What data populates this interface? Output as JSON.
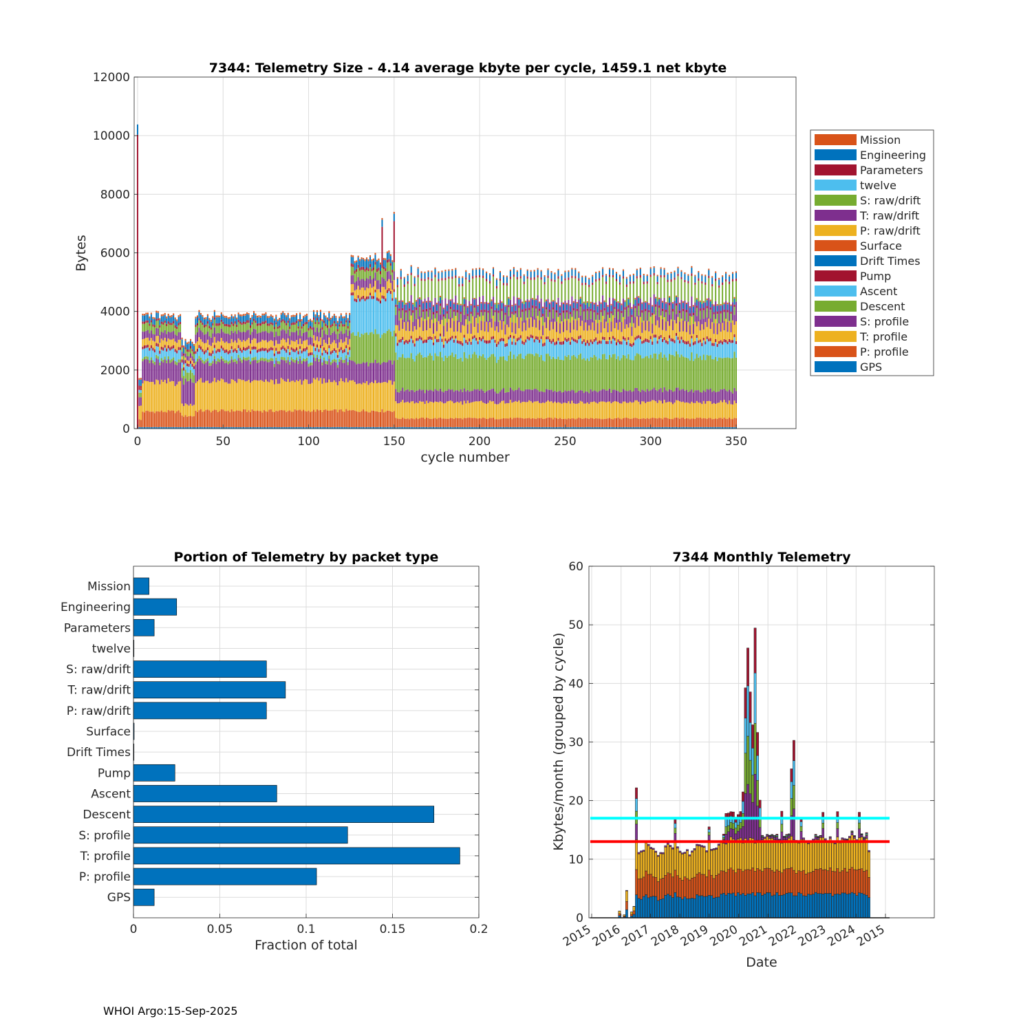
{
  "footer": "WHOI Argo:15-Sep-2025",
  "colors": {
    "Mission": "#D95319",
    "Engineering": "#0072BD",
    "Parameters": "#A2142F",
    "twelve": "#4DBEEE",
    "S: raw/drift": "#77AC30",
    "T: raw/drift": "#7E2F8E",
    "P: raw/drift": "#EDB120",
    "Surface": "#D95319",
    "Drift Times": "#0072BD",
    "Pump": "#A2142F",
    "Ascent": "#4DBEEE",
    "Descent": "#77AC30",
    "S: profile": "#7E2F8E",
    "T: profile": "#EDB120",
    "P: profile": "#D95319",
    "GPS": "#0072BD",
    "bar_blue": "#0072BD",
    "mean_line": "#00FFFF",
    "median_line": "#FF0000"
  },
  "chart_data": [
    {
      "type": "bar",
      "stacked": true,
      "title": "7344: Telemetry Size - 4.14 average kbyte per cycle, 1459.1 net kbyte",
      "xlabel": "cycle number",
      "ylabel": "Bytes",
      "xlim": [
        -2,
        385
      ],
      "ylim": [
        0,
        12000
      ],
      "xticks": [
        0,
        50,
        100,
        150,
        200,
        250,
        300,
        350
      ],
      "yticks": [
        0,
        2000,
        4000,
        6000,
        8000,
        10000,
        12000
      ],
      "grid": true,
      "legend_placement": "outside-right",
      "legend": [
        "Mission",
        "Engineering",
        "Parameters",
        "twelve",
        "S: raw/drift",
        "T: raw/drift",
        "P: raw/drift",
        "Surface",
        "Drift Times",
        "Pump",
        "Ascent",
        "Descent",
        "S: profile",
        "T: profile",
        "P: profile",
        "GPS"
      ],
      "stack_order": [
        "GPS",
        "P: profile",
        "T: profile",
        "S: profile",
        "Descent",
        "Ascent",
        "Pump",
        "Drift Times",
        "Surface",
        "P: raw/drift",
        "T: raw/drift",
        "S: raw/drift",
        "twelve",
        "Parameters",
        "Engineering",
        "Mission"
      ],
      "segments": [
        {
          "cycles": [
            0,
            0
          ],
          "values": {
            "GPS": 0,
            "P: profile": 0,
            "T: profile": 0,
            "S: profile": 0,
            "Descent": 0,
            "Ascent": 0,
            "Pump": 0,
            "Mission": 0,
            "Parameters": 10500,
            "Engineering": 350
          }
        },
        {
          "cycles": [
            1,
            2
          ],
          "values": {
            "GPS": 50,
            "P: profile": 250,
            "T: profile": 500,
            "S: profile": 300,
            "Descent": 150,
            "Ascent": 100,
            "Pump": 60,
            "Mission": 60,
            "Parameters": 80,
            "Engineering": 200
          }
        },
        {
          "cycles": [
            3,
            25
          ],
          "values": {
            "GPS": 50,
            "P: profile": 530,
            "T: profile": 1000,
            "S: profile": 700,
            "Descent": 100,
            "Ascent": 300,
            "Pump": 100,
            "Mission": 60,
            "Parameters": 80,
            "Engineering": 200,
            "S: raw/drift": 250,
            "T: raw/drift": 250,
            "P: raw/drift": 250
          }
        },
        {
          "cycles": [
            26,
            33
          ],
          "values": {
            "GPS": 50,
            "P: profile": 380,
            "T: profile": 400,
            "S: profile": 800,
            "Descent": 300,
            "Ascent": 200,
            "Pump": 100,
            "Mission": 60,
            "Parameters": 80,
            "Engineering": 200,
            "S: raw/drift": 150,
            "T: raw/drift": 150,
            "P: raw/drift": 100
          }
        },
        {
          "cycles": [
            34,
            124
          ],
          "values": {
            "GPS": 50,
            "P: profile": 560,
            "T: profile": 1000,
            "S: profile": 650,
            "Descent": 100,
            "Ascent": 250,
            "Pump": 100,
            "Mission": 60,
            "Parameters": 80,
            "Engineering": 200,
            "S: raw/drift": 250,
            "T: raw/drift": 300,
            "P: raw/drift": 250
          }
        },
        {
          "cycles": [
            125,
            150
          ],
          "values": {
            "GPS": 50,
            "P: profile": 560,
            "T: profile": 1000,
            "S: profile": 650,
            "Descent": 1000,
            "Ascent": 1200,
            "Pump": 100,
            "Mission": 60,
            "Parameters": 100,
            "Engineering": 250,
            "S: raw/drift": 300,
            "T: raw/drift": 300,
            "P: raw/drift": 300
          }
        },
        {
          "cycles": [
            151,
            350
          ],
          "odd_even": true,
          "odd_values": {
            "GPS": 50,
            "P: profile": 300,
            "T: profile": 550,
            "S: profile": 400,
            "Descent": 1150,
            "Ascent": 500,
            "Pump": 100,
            "Mission": 50,
            "Parameters": 80,
            "Engineering": 200,
            "S: raw/drift": 300,
            "T: raw/drift": 350,
            "P: raw/drift": 300
          },
          "even_values": {
            "GPS": 50,
            "P: profile": 300,
            "T: profile": 550,
            "S: profile": 400,
            "Descent": 1150,
            "Ascent": 500,
            "Pump": 100,
            "Mission": 50,
            "Parameters": 80,
            "Engineering": 200,
            "S: raw/drift": 650,
            "T: raw/drift": 650,
            "P: raw/drift": 650
          }
        }
      ],
      "spikes": [
        {
          "cycle": 143,
          "Parameters": 1300
        },
        {
          "cycle": 150,
          "Parameters": 1300
        }
      ]
    },
    {
      "type": "bar",
      "orientation": "horizontal",
      "title": "Portion of Telemetry by packet type",
      "xlabel": "Fraction of total",
      "xlim": [
        0,
        0.2
      ],
      "xticks": [
        0,
        0.05,
        0.1,
        0.15,
        0.2
      ],
      "xtick_labels": [
        "0",
        "0.05",
        "0.1",
        "0.15",
        "0.2"
      ],
      "categories": [
        "Mission",
        "Engineering",
        "Parameters",
        "twelve",
        "S: raw/drift",
        "T: raw/drift",
        "P: raw/drift",
        "Surface",
        "Drift Times",
        "Pump",
        "Ascent",
        "Descent",
        "S: profile",
        "T: profile",
        "P: profile",
        "GPS"
      ],
      "values": [
        0.009,
        0.025,
        0.012,
        0.0003,
        0.077,
        0.088,
        0.077,
        0.0004,
        0.0003,
        0.024,
        0.083,
        0.174,
        0.124,
        0.189,
        0.106,
        0.012
      ]
    },
    {
      "type": "bar",
      "stacked": true,
      "title": "7344 Monthly Telemetry",
      "xlabel": "Date",
      "ylabel": "Kbytes/month (grouped by cycle)",
      "ylim": [
        0,
        60
      ],
      "yticks": [
        0,
        10,
        20,
        30,
        40,
        50,
        60
      ],
      "xtick_labels": [
        "2015",
        "2016",
        "2017",
        "2018",
        "2019",
        "2020",
        "2021",
        "2022",
        "2023",
        "2024",
        "2015"
      ],
      "xlim": [
        2015,
        2027.1
      ],
      "grid": true,
      "reference_lines": [
        {
          "name": "mean",
          "value": 17,
          "color": "#00FFFF"
        },
        {
          "name": "median",
          "value": 13,
          "color": "#FF0000"
        }
      ],
      "line_xrange": [
        2015,
        2027.1
      ],
      "bar_range": [
        2015.0,
        2027.1
      ],
      "series_colors": [
        "#0072BD",
        "#D95319",
        "#EDB120",
        "#7E2F8E",
        "#77AC30",
        "#4DBEEE",
        "#A2142F"
      ],
      "monthly_totals": [
        0,
        0,
        0,
        0,
        0,
        0,
        0,
        0,
        0,
        0,
        0,
        1.2,
        0,
        0.5,
        4.8,
        0,
        1,
        2,
        22,
        12,
        11,
        11.5,
        12.5,
        12.3,
        12,
        11.8,
        11.5,
        10.5,
        11.2,
        11.8,
        12,
        12.5,
        12.4,
        12.3,
        16.8,
        12,
        11.6,
        11,
        11.2,
        11.6,
        11,
        11.4,
        11.8,
        12.5,
        12.7,
        12.6,
        12.2,
        11.5,
        15.6,
        11.8,
        11.9,
        12.1,
        12.5,
        13,
        14.8,
        18.5,
        18,
        17.5,
        17.8,
        17.2,
        17.4,
        17.8,
        22.3,
        39.4,
        47,
        38,
        33,
        50,
        31.9,
        20,
        14,
        13.5,
        13.6,
        13.8,
        13.9,
        14,
        14.2,
        13.6,
        18.7,
        13.8,
        14.2,
        14,
        24.5,
        29.9,
        13.5,
        13.3,
        16.9,
        13.4,
        13.2,
        12.9,
        13.1,
        13.5,
        14.1,
        13.8,
        13.6,
        17.5,
        13.3,
        13.2,
        13.6,
        13.4,
        13,
        17.6,
        13.5,
        13.4,
        13.1,
        13.8,
        13.4,
        13.9,
        13.7,
        13.5,
        17.4,
        13.8,
        13.9,
        14.2,
        12
      ]
    }
  ]
}
